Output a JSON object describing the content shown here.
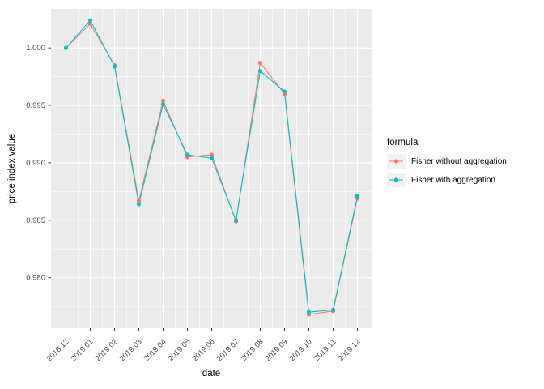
{
  "chart_data": {
    "type": "line",
    "title": "",
    "xlabel": "date",
    "ylabel": "price index value",
    "categories": [
      "2018 12",
      "2019 01",
      "2019 02",
      "2019 03",
      "2019 04",
      "2019 05",
      "2019 06",
      "2019 07",
      "2019 08",
      "2019 09",
      "2019 10",
      "2019 11",
      "2019 12"
    ],
    "series": [
      {
        "name": "Fisher without aggregation",
        "color": "#F8766D",
        "values": [
          1.0,
          1.0021,
          0.9985,
          0.9867,
          0.9954,
          0.9905,
          0.9907,
          0.9849,
          0.9987,
          0.996,
          0.9768,
          0.9771,
          0.9869
        ]
      },
      {
        "name": "Fisher with aggregation",
        "color": "#00BFC4",
        "values": [
          1.0,
          1.0024,
          0.9984,
          0.9864,
          0.9951,
          0.9907,
          0.9904,
          0.985,
          0.998,
          0.9962,
          0.977,
          0.9772,
          0.9871
        ]
      }
    ],
    "y_tick_values": [
      0.98,
      0.985,
      0.99,
      0.995,
      1.0
    ],
    "y_tick_labels": [
      "0.980",
      "0.985",
      "0.990",
      "0.995",
      "1.000"
    ],
    "ylim": [
      0.9756,
      1.0034
    ],
    "x_label_angle": 45,
    "grid": {
      "major": "x+y",
      "minor": "x+y"
    },
    "legend": {
      "title": "formula",
      "position": "right"
    },
    "theme": {
      "panel_bg": "#EBEBEB",
      "grid_color": "#FFFFFF",
      "tick_mark_color": "#333333",
      "tick_label_color": "#4D4D4D",
      "axis_title_color": "#000000",
      "legend_key_bg": "#F2F2F2"
    }
  }
}
